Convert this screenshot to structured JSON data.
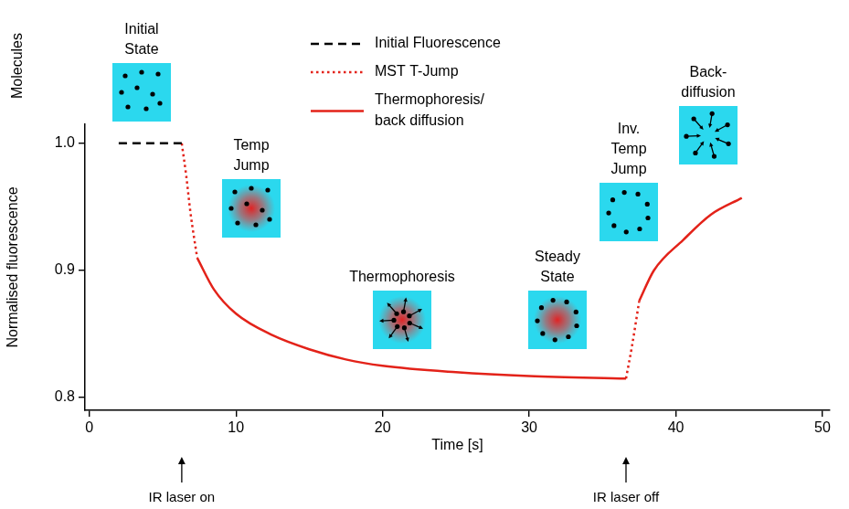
{
  "chart_data": {
    "type": "line",
    "xlabel": "Time [s]",
    "ylabel": "Normalised fluorescence",
    "xlim": [
      -0.3,
      50.5
    ],
    "xticks": [
      0,
      10,
      20,
      30,
      40,
      50
    ],
    "ylim": [
      0.79,
      1.015
    ],
    "yticks": [
      0.8,
      0.9,
      {
        "value": 1,
        "label": "1.0"
      }
    ],
    "grid": false,
    "legend": "top",
    "series": [
      {
        "name": "Initial Fluorescence",
        "color": "#000000",
        "line_style": "dashed",
        "x": [
          2.0,
          6.3
        ],
        "values": [
          1.0,
          1.0
        ]
      },
      {
        "name": "MST T-Jump",
        "color": "#e32219",
        "line_style": "dotted",
        "x": [
          6.3,
          6.6,
          6.9,
          7.35,
          null,
          36.6,
          37.0,
          37.5
        ],
        "values": [
          1.0,
          0.975,
          0.945,
          0.91,
          null,
          0.815,
          0.84,
          0.876
        ]
      },
      {
        "name": "Thermophoresis/back diffusion",
        "color": "#e32219",
        "line_style": "solid",
        "x": [
          7.35,
          8.5,
          10,
          12.5,
          15,
          17.5,
          20,
          25,
          30,
          36.6,
          null,
          37.5,
          38.5,
          40.5,
          42.4,
          44.5
        ],
        "values": [
          0.91,
          0.885,
          0.866,
          0.849,
          0.838,
          0.83,
          0.825,
          0.82,
          0.817,
          0.815,
          null,
          0.876,
          0.9,
          0.924,
          0.944,
          0.957
        ]
      }
    ],
    "annotations": [
      "Initial State",
      "Temp Jump",
      "Thermophoresis",
      "Steady State",
      "Inv. Temp Jump",
      "Back-diffusion"
    ],
    "side_label": "Molecules",
    "events": [
      {
        "label": "IR laser on",
        "x": 6.3
      },
      {
        "label": "IR laser off",
        "x": 36.6
      }
    ]
  }
}
